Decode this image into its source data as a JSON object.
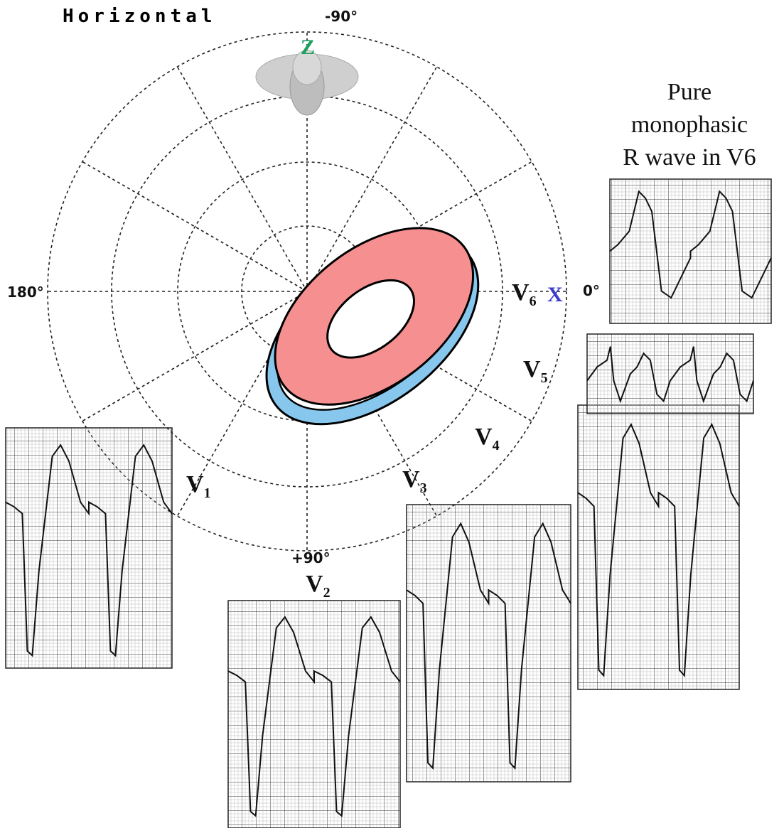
{
  "title": "Horizontal",
  "angles": {
    "top": "-90°",
    "left": "180°",
    "right": "0°",
    "bottom": "+90°"
  },
  "axes": {
    "z": "Z",
    "x": "X"
  },
  "leads": [
    {
      "name": "V",
      "index": "1"
    },
    {
      "name": "V",
      "index": "2"
    },
    {
      "name": "V",
      "index": "3"
    },
    {
      "name": "V",
      "index": "4"
    },
    {
      "name": "V",
      "index": "5"
    },
    {
      "name": "V",
      "index": "6"
    }
  ],
  "note": [
    "Pure",
    "monophasic",
    "R wave in V6"
  ]
}
